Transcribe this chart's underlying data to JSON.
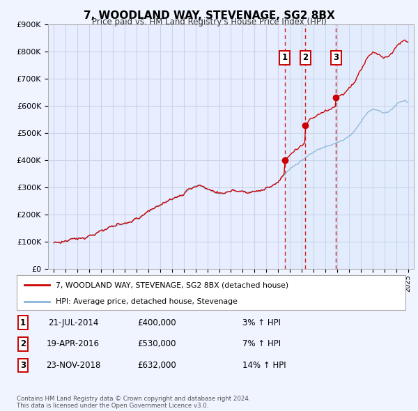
{
  "title": "7, WOODLAND WAY, STEVENAGE, SG2 8BX",
  "subtitle": "Price paid vs. HM Land Registry's House Price Index (HPI)",
  "background_color": "#f0f4ff",
  "plot_bg_color": "#e8eeff",
  "grid_color": "#c8d4e8",
  "hpi_color": "#8ab4d8",
  "price_color": "#cc0000",
  "marker_color": "#cc0000",
  "vline_color": "#cc0000",
  "shade_color": "#d0e4f8",
  "ylim": [
    0,
    900000
  ],
  "yticks": [
    0,
    100000,
    200000,
    300000,
    400000,
    500000,
    600000,
    700000,
    800000,
    900000
  ],
  "ytick_labels": [
    "£0",
    "£100K",
    "£200K",
    "£300K",
    "£400K",
    "£500K",
    "£600K",
    "£700K",
    "£800K",
    "£900K"
  ],
  "sale_dates": [
    2014.55,
    2016.3,
    2018.9
  ],
  "sale_prices": [
    400000,
    530000,
    632000
  ],
  "sale_labels": [
    "1",
    "2",
    "3"
  ],
  "sale_date_strs": [
    "21-JUL-2014",
    "19-APR-2016",
    "23-NOV-2018"
  ],
  "sale_price_strs": [
    "£400,000",
    "£530,000",
    "£632,000"
  ],
  "sale_pct_strs": [
    "3% ↑ HPI",
    "7% ↑ HPI",
    "14% ↑ HPI"
  ],
  "legend_line1": "7, WOODLAND WAY, STEVENAGE, SG2 8BX (detached house)",
  "legend_line2": "HPI: Average price, detached house, Stevenage",
  "footer": "Contains HM Land Registry data © Crown copyright and database right 2024.\nThis data is licensed under the Open Government Licence v3.0.",
  "xmin": 1994.5,
  "xmax": 2025.5,
  "xticks": [
    1995,
    1996,
    1997,
    1998,
    1999,
    2000,
    2001,
    2002,
    2003,
    2004,
    2005,
    2006,
    2007,
    2008,
    2009,
    2010,
    2011,
    2012,
    2013,
    2014,
    2015,
    2016,
    2017,
    2018,
    2019,
    2020,
    2021,
    2022,
    2023,
    2024,
    2025
  ]
}
